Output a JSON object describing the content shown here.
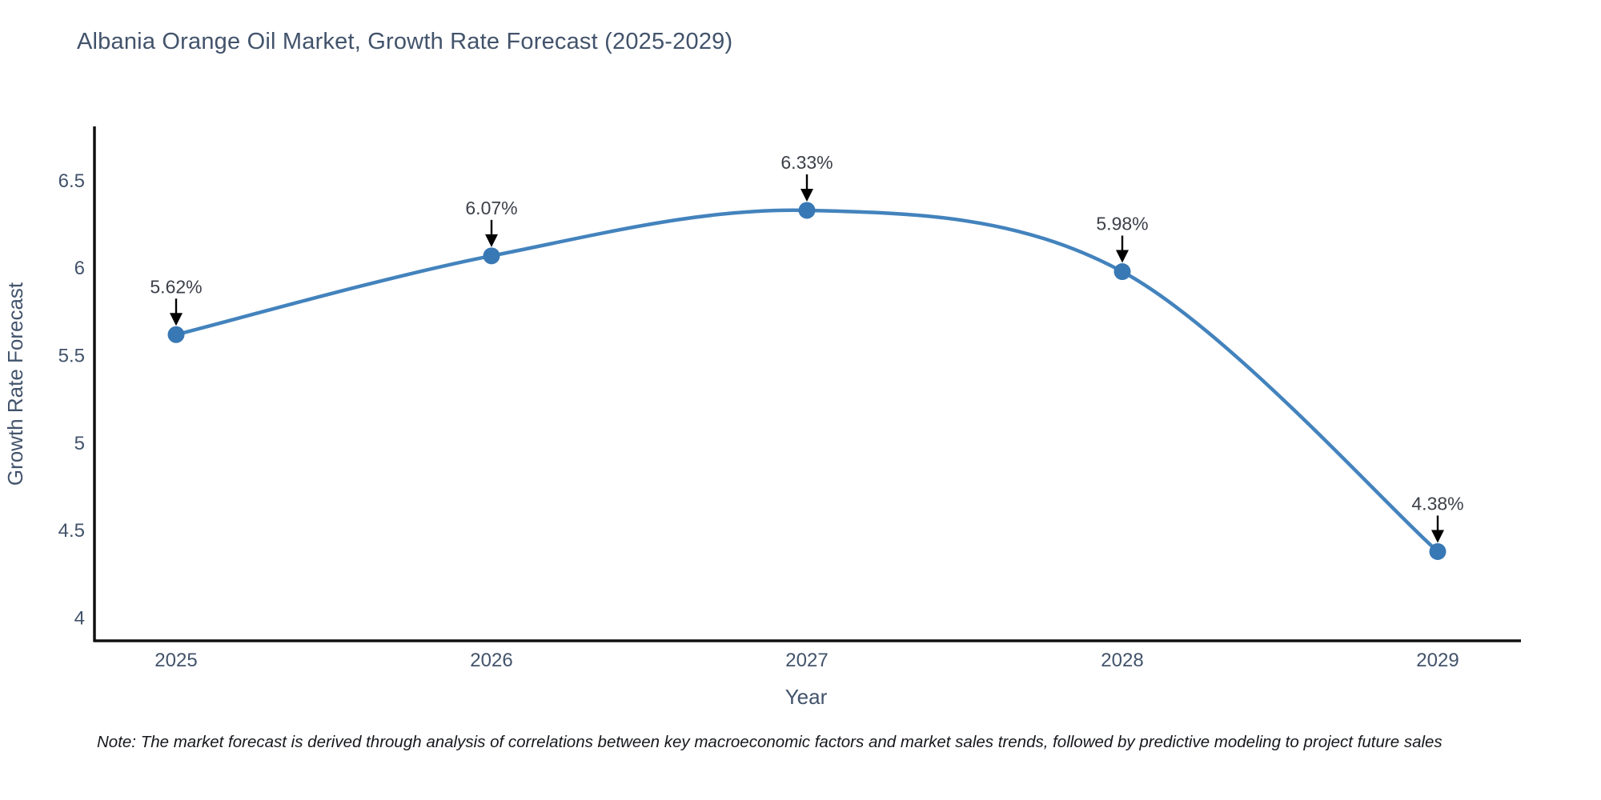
{
  "note": "Note: The market forecast is derived through analysis of correlations between key macroeconomic factors and market sales trends, followed by predictive modeling to project future sales",
  "chart_data": {
    "type": "line",
    "title": "Albania Orange Oil Market, Growth Rate Forecast (2025-2029)",
    "xlabel": "Year",
    "ylabel": "Growth Rate Forecast",
    "x": [
      2025,
      2026,
      2027,
      2028,
      2029
    ],
    "values": [
      5.62,
      6.07,
      6.33,
      5.98,
      4.38
    ],
    "point_labels": [
      "5.62%",
      "6.07%",
      "6.33%",
      "5.98%",
      "4.38%"
    ],
    "yticks": [
      4,
      4.5,
      5,
      5.5,
      6,
      6.5
    ],
    "ylim": [
      3.87,
      6.81
    ],
    "grid": false,
    "legend_position": "none",
    "line_shape": "spline",
    "colors": {
      "line": "#4383bd",
      "marker": "#3878b4",
      "axis": "#111111",
      "tick_text": "#42536b",
      "annotation_text": "#3c4049",
      "arrow": "#000000"
    }
  }
}
